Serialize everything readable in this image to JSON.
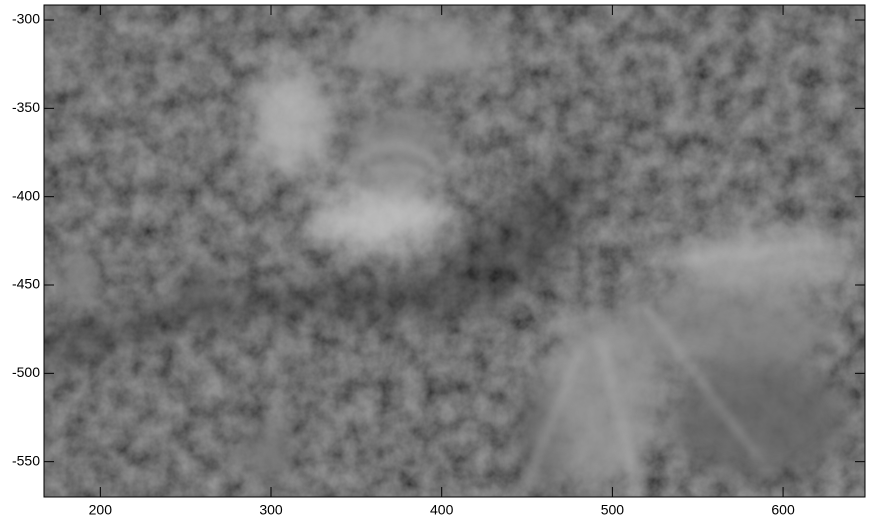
{
  "chart_data": {
    "type": "image",
    "xlim": [
      167,
      648
    ],
    "xticks": [
      200,
      300,
      400,
      500,
      600
    ],
    "ylim": [
      -570,
      -291.5
    ],
    "yticks": [
      -300,
      -350,
      -400,
      -450,
      -500,
      -550
    ]
  }
}
